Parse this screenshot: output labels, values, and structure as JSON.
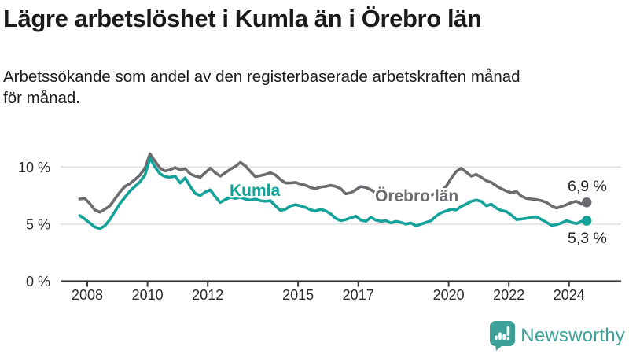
{
  "header": {
    "title": "Lägre arbetslöshet i Kumla än i Örebro län",
    "subtitle_lines": [
      "Arbetssökande som andel av den registerbaserade arbetskraften månad",
      "för månad."
    ]
  },
  "chart_data": {
    "type": "line",
    "unit": "%",
    "x_start": 2007.75,
    "x_step_years": 0.16667,
    "ylim": [
      0,
      11.5
    ],
    "grid": "horizontal",
    "legend": "inline-labels",
    "yticks": [
      {
        "value": 0,
        "label": "0 %"
      },
      {
        "value": 5,
        "label": "5 %"
      },
      {
        "value": 10,
        "label": "10 %"
      }
    ],
    "xticks": [
      {
        "value": 2008,
        "label": "2008"
      },
      {
        "value": 2010,
        "label": "2010"
      },
      {
        "value": 2012,
        "label": "2012"
      },
      {
        "value": 2015,
        "label": "2015"
      },
      {
        "value": 2017,
        "label": "2017"
      },
      {
        "value": 2020,
        "label": "2020"
      },
      {
        "value": 2022,
        "label": "2022"
      },
      {
        "value": 2024,
        "label": "2024"
      }
    ],
    "series": [
      {
        "name": "Örebro län",
        "color": "#6b6b70",
        "end_label": "6,9 %",
        "last_value": 6.9,
        "values": [
          7.2,
          7.25,
          6.8,
          6.25,
          6.05,
          6.3,
          6.6,
          7.2,
          7.8,
          8.3,
          8.55,
          8.9,
          9.3,
          9.9,
          11.15,
          10.5,
          9.9,
          9.65,
          9.75,
          9.95,
          9.75,
          9.85,
          9.4,
          9.2,
          9.1,
          9.5,
          9.9,
          9.5,
          9.2,
          9.5,
          9.8,
          10.05,
          10.4,
          10.1,
          9.6,
          9.15,
          9.25,
          9.35,
          9.5,
          9.3,
          8.9,
          8.6,
          8.6,
          8.65,
          8.5,
          8.4,
          8.2,
          8.1,
          8.25,
          8.3,
          8.4,
          8.3,
          8.1,
          7.65,
          7.75,
          8.0,
          8.3,
          8.2,
          8.0,
          7.75,
          7.85,
          7.7,
          7.6,
          7.55,
          7.45,
          7.35,
          7.45,
          7.35,
          7.4,
          7.5,
          7.55,
          7.7,
          7.9,
          8.3,
          9.0,
          9.6,
          9.9,
          9.55,
          9.2,
          9.35,
          9.1,
          8.8,
          8.65,
          8.35,
          8.1,
          7.9,
          7.75,
          7.85,
          7.45,
          7.25,
          7.2,
          7.15,
          7.05,
          6.9,
          6.6,
          6.4,
          6.55,
          6.7,
          6.9,
          7.0,
          6.75,
          6.9
        ]
      },
      {
        "name": "Kumla",
        "color": "#13a29a",
        "end_label": "5,3 %",
        "last_value": 5.3,
        "values": [
          5.75,
          5.45,
          5.1,
          4.75,
          4.6,
          4.85,
          5.4,
          6.1,
          6.8,
          7.35,
          7.9,
          8.3,
          8.7,
          9.3,
          10.75,
          10.0,
          9.4,
          9.15,
          9.1,
          9.2,
          8.6,
          9.05,
          8.3,
          7.7,
          7.5,
          7.8,
          8.0,
          7.4,
          6.9,
          7.15,
          7.35,
          7.25,
          7.35,
          7.2,
          7.1,
          7.2,
          7.05,
          7.0,
          7.05,
          6.6,
          6.2,
          6.3,
          6.6,
          6.7,
          6.6,
          6.45,
          6.25,
          6.15,
          6.3,
          6.15,
          5.9,
          5.5,
          5.3,
          5.4,
          5.55,
          5.7,
          5.35,
          5.25,
          5.6,
          5.35,
          5.25,
          5.3,
          5.1,
          5.25,
          5.15,
          5.0,
          5.1,
          4.85,
          5.0,
          5.15,
          5.3,
          5.7,
          6.0,
          6.15,
          6.3,
          6.25,
          6.55,
          6.75,
          7.0,
          7.1,
          7.0,
          6.6,
          6.75,
          6.4,
          6.2,
          6.1,
          5.8,
          5.4,
          5.45,
          5.5,
          5.6,
          5.65,
          5.4,
          5.15,
          4.9,
          4.95,
          5.1,
          5.3,
          5.15,
          5.05,
          5.25,
          5.3
        ]
      }
    ]
  },
  "footer": {
    "brand": "Newsworthy",
    "brand_color": "#3da099"
  },
  "colors": {
    "axis": "#3b3b3b",
    "grid": "#dcdcdc",
    "tick_text": "#2b2b2b",
    "title_text": "#1a1a1a"
  }
}
